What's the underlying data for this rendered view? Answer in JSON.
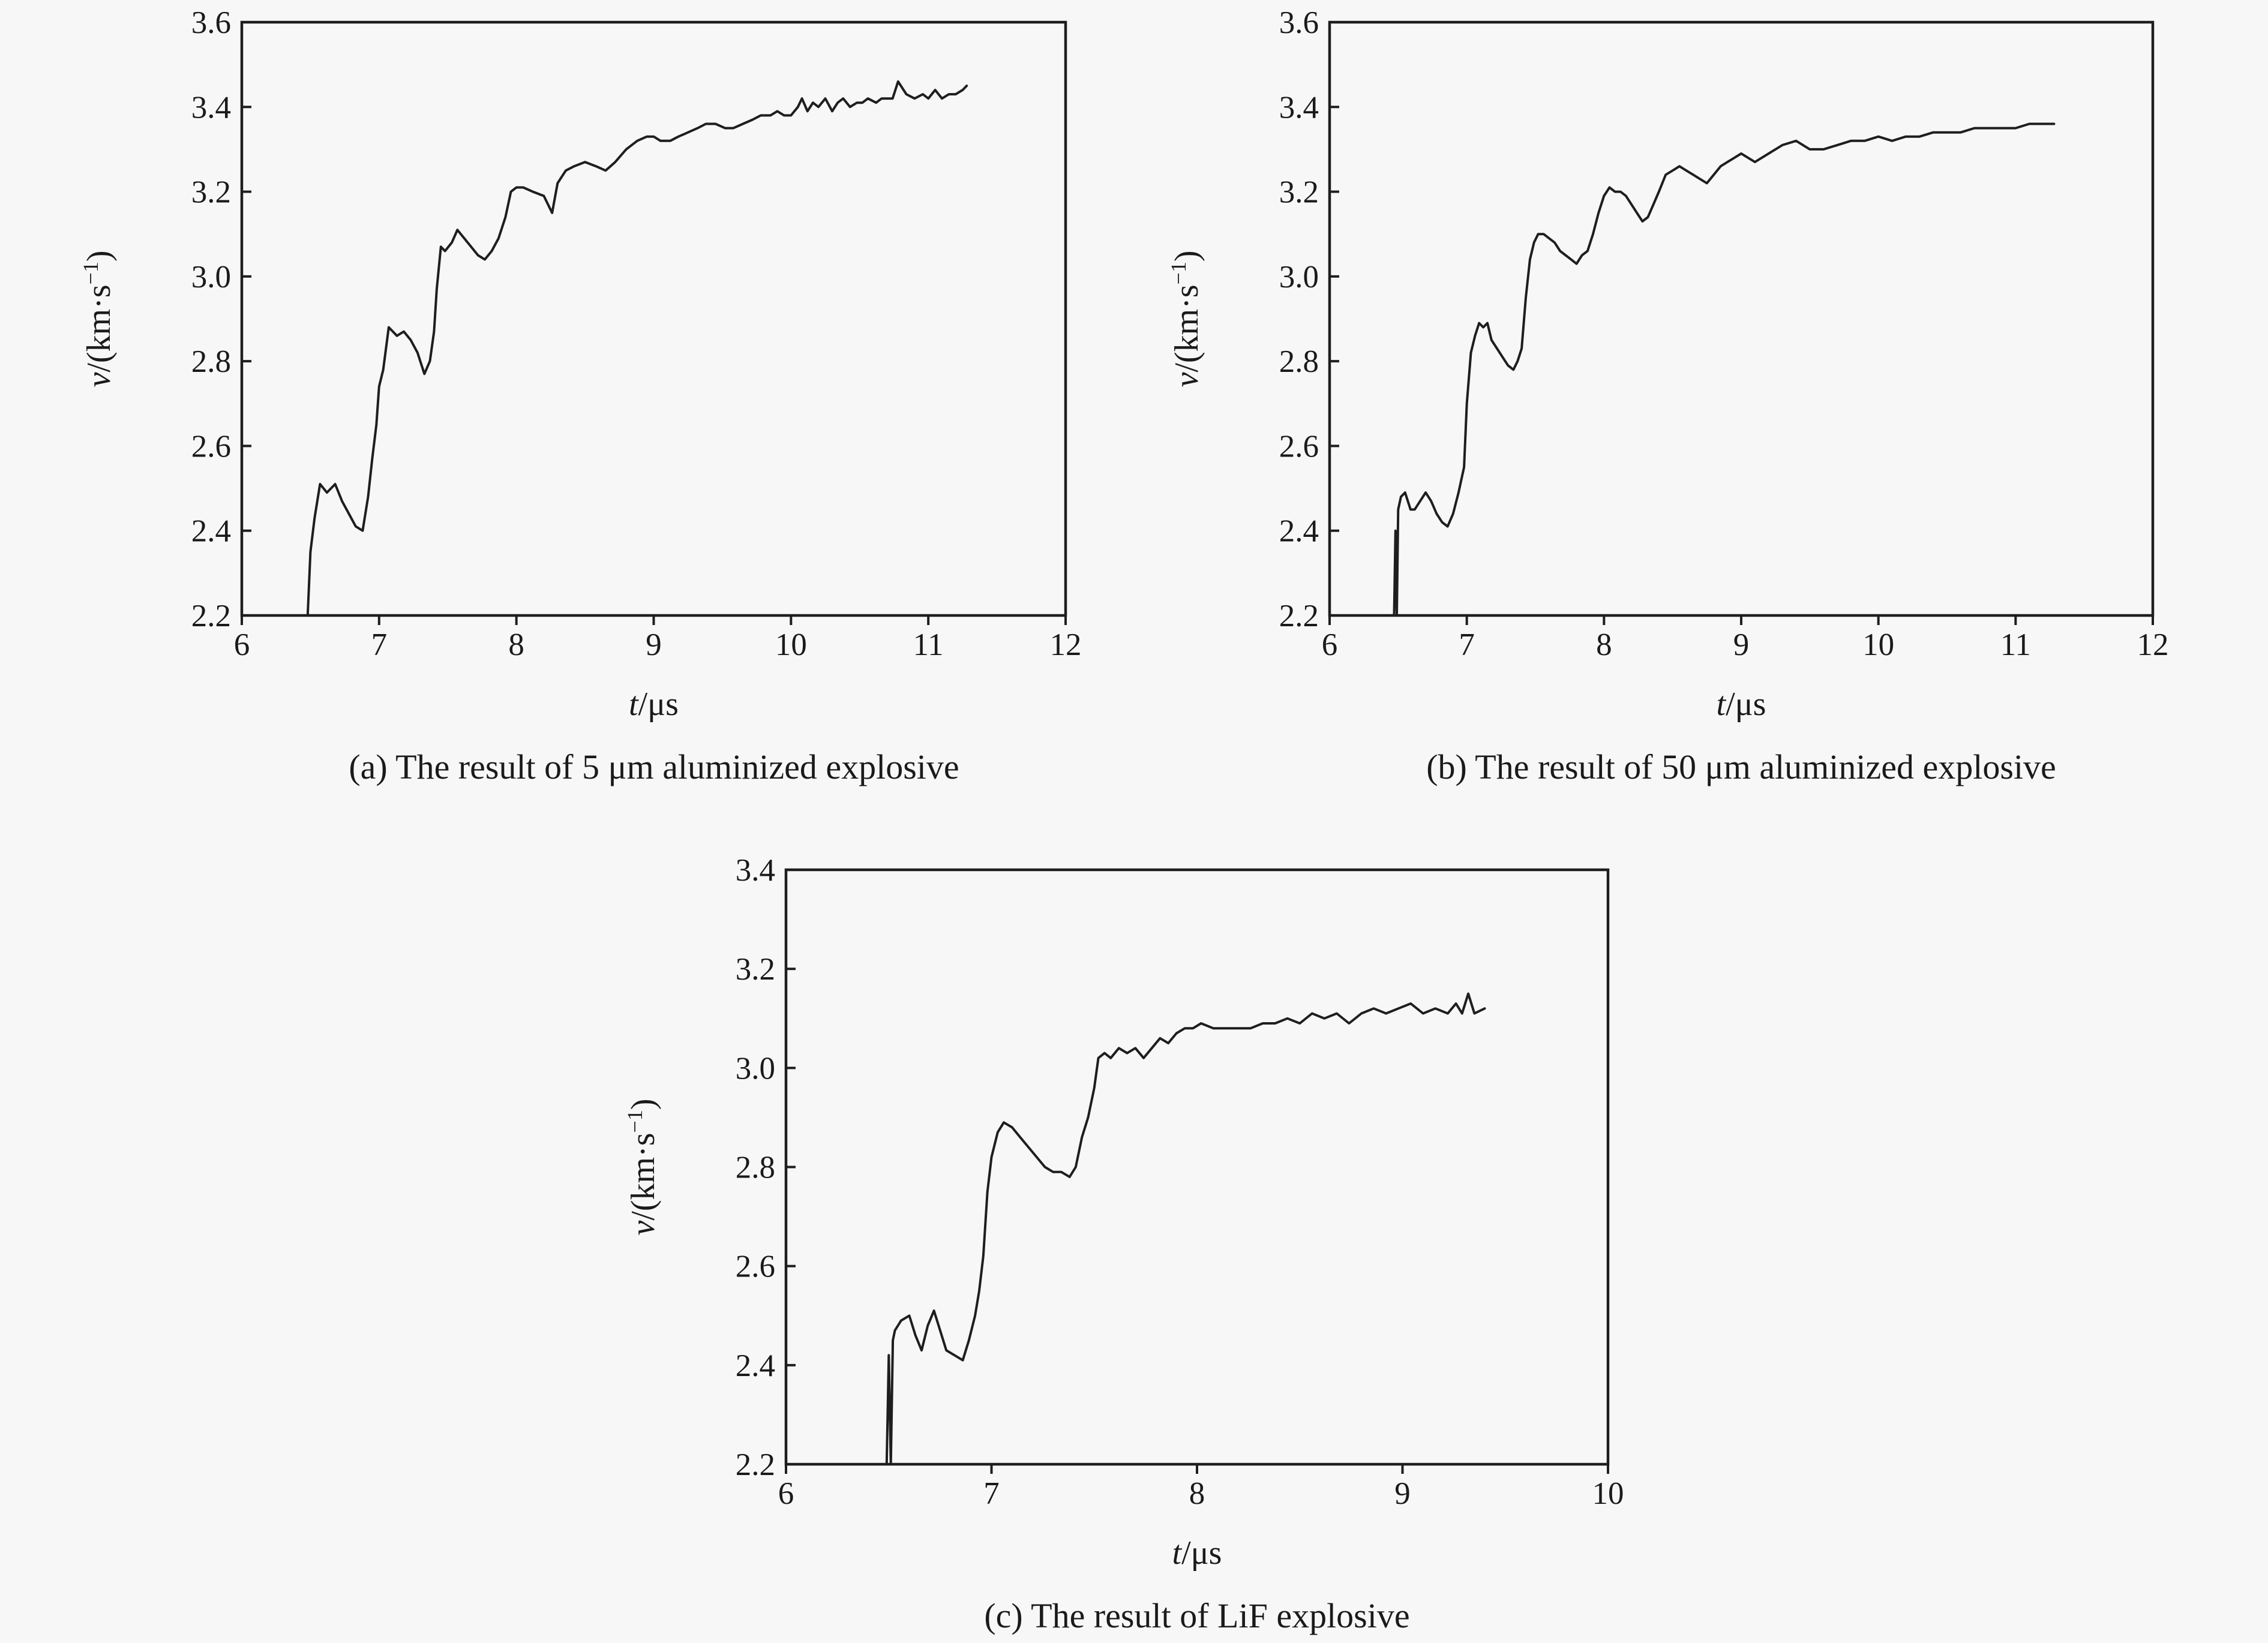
{
  "chart_data": [
    {
      "type": "line",
      "caption": "(a) The result of 5 μm aluminized explosive",
      "xlabel_var": "t",
      "xlabel_unit": "/μs",
      "ylabel_var": "v",
      "ylabel_unit": "/(km·s",
      "ylabel_exp": "−1",
      "ylabel_close": ")",
      "xlim": [
        6,
        12
      ],
      "ylim": [
        2.2,
        3.6
      ],
      "xticks": [
        "6",
        "7",
        "8",
        "9",
        "10",
        "11",
        "12"
      ],
      "yticks": [
        "2.2",
        "2.4",
        "2.6",
        "2.8",
        "3.0",
        "3.2",
        "3.4",
        "3.6"
      ],
      "series": [
        {
          "x": [
            6.48,
            6.5,
            6.53,
            6.57,
            6.62,
            6.68,
            6.73,
            6.78,
            6.83,
            6.88,
            6.92,
            6.95,
            6.98,
            7.0,
            7.03,
            7.07,
            7.13,
            7.18,
            7.23,
            7.28,
            7.33,
            7.37,
            7.4,
            7.42,
            7.45,
            7.48,
            7.53,
            7.57,
            7.62,
            7.67,
            7.72,
            7.77,
            7.82,
            7.87,
            7.92,
            7.96,
            8.0,
            8.05,
            8.12,
            8.2,
            8.26,
            8.3,
            8.36,
            8.42,
            8.5,
            8.58,
            8.65,
            8.72,
            8.8,
            8.88,
            8.95,
            9.0,
            9.05,
            9.12,
            9.18,
            9.25,
            9.32,
            9.38,
            9.45,
            9.52,
            9.58,
            9.65,
            9.72,
            9.78,
            9.85,
            9.9,
            9.95,
            10.0,
            10.05,
            10.08,
            10.12,
            10.16,
            10.2,
            10.25,
            10.3,
            10.34,
            10.38,
            10.43,
            10.48,
            10.52,
            10.56,
            10.62,
            10.66,
            10.7,
            10.74,
            10.78,
            10.84,
            10.9,
            10.96,
            11.0,
            11.05,
            11.1,
            11.15,
            11.2,
            11.25,
            11.28
          ],
          "y": [
            2.2,
            2.35,
            2.43,
            2.51,
            2.49,
            2.51,
            2.47,
            2.44,
            2.41,
            2.4,
            2.48,
            2.57,
            2.65,
            2.74,
            2.78,
            2.88,
            2.86,
            2.87,
            2.85,
            2.82,
            2.77,
            2.8,
            2.87,
            2.97,
            3.07,
            3.06,
            3.08,
            3.11,
            3.09,
            3.07,
            3.05,
            3.04,
            3.06,
            3.09,
            3.14,
            3.2,
            3.21,
            3.21,
            3.2,
            3.19,
            3.15,
            3.22,
            3.25,
            3.26,
            3.27,
            3.26,
            3.25,
            3.27,
            3.3,
            3.32,
            3.33,
            3.33,
            3.32,
            3.32,
            3.33,
            3.34,
            3.35,
            3.36,
            3.36,
            3.35,
            3.35,
            3.36,
            3.37,
            3.38,
            3.38,
            3.39,
            3.38,
            3.38,
            3.4,
            3.42,
            3.39,
            3.41,
            3.4,
            3.42,
            3.39,
            3.41,
            3.42,
            3.4,
            3.41,
            3.41,
            3.42,
            3.41,
            3.42,
            3.42,
            3.42,
            3.46,
            3.43,
            3.42,
            3.43,
            3.42,
            3.44,
            3.42,
            3.43,
            3.43,
            3.44,
            3.45
          ]
        }
      ]
    },
    {
      "type": "line",
      "caption": "(b) The result of 50 μm aluminized explosive",
      "xlabel_var": "t",
      "xlabel_unit": "/μs",
      "ylabel_var": "v",
      "ylabel_unit": "/(km·s",
      "ylabel_exp": "−1",
      "ylabel_close": ")",
      "xlim": [
        6,
        12
      ],
      "ylim": [
        2.2,
        3.6
      ],
      "xticks": [
        "6",
        "7",
        "8",
        "9",
        "10",
        "11",
        "12"
      ],
      "yticks": [
        "2.2",
        "2.4",
        "2.6",
        "2.8",
        "3.0",
        "3.2",
        "3.4",
        "3.6"
      ],
      "series": [
        {
          "x": [
            6.47,
            6.48,
            6.49,
            6.5,
            6.52,
            6.55,
            6.59,
            6.62,
            6.66,
            6.7,
            6.74,
            6.78,
            6.82,
            6.86,
            6.9,
            6.94,
            6.98,
            7.0,
            7.03,
            7.06,
            7.09,
            7.12,
            7.15,
            7.18,
            7.22,
            7.26,
            7.3,
            7.34,
            7.37,
            7.4,
            7.43,
            7.46,
            7.49,
            7.52,
            7.56,
            7.6,
            7.64,
            7.68,
            7.72,
            7.76,
            7.8,
            7.84,
            7.88,
            7.92,
            7.96,
            8.0,
            8.04,
            8.08,
            8.12,
            8.16,
            8.2,
            8.24,
            8.28,
            8.32,
            8.36,
            8.4,
            8.45,
            8.5,
            8.55,
            8.6,
            8.65,
            8.7,
            8.75,
            8.8,
            8.85,
            8.9,
            8.95,
            9.0,
            9.1,
            9.2,
            9.3,
            9.4,
            9.5,
            9.6,
            9.7,
            9.8,
            9.9,
            10.0,
            10.1,
            10.2,
            10.3,
            10.4,
            10.5,
            10.6,
            10.7,
            10.8,
            10.9,
            11.0,
            11.1,
            11.2,
            11.28
          ],
          "y": [
            2.2,
            2.4,
            2.2,
            2.45,
            2.48,
            2.49,
            2.45,
            2.45,
            2.47,
            2.49,
            2.47,
            2.44,
            2.42,
            2.41,
            2.44,
            2.49,
            2.55,
            2.7,
            2.82,
            2.86,
            2.89,
            2.88,
            2.89,
            2.85,
            2.83,
            2.81,
            2.79,
            2.78,
            2.8,
            2.83,
            2.95,
            3.04,
            3.08,
            3.1,
            3.1,
            3.09,
            3.08,
            3.06,
            3.05,
            3.04,
            3.03,
            3.05,
            3.06,
            3.1,
            3.15,
            3.19,
            3.21,
            3.2,
            3.2,
            3.19,
            3.17,
            3.15,
            3.13,
            3.14,
            3.17,
            3.2,
            3.24,
            3.25,
            3.26,
            3.25,
            3.24,
            3.23,
            3.22,
            3.24,
            3.26,
            3.27,
            3.28,
            3.29,
            3.27,
            3.29,
            3.31,
            3.32,
            3.3,
            3.3,
            3.31,
            3.32,
            3.32,
            3.33,
            3.32,
            3.33,
            3.33,
            3.34,
            3.34,
            3.34,
            3.35,
            3.35,
            3.35,
            3.35,
            3.36,
            3.36,
            3.36
          ]
        }
      ]
    },
    {
      "type": "line",
      "caption": "(c) The result of LiF explosive",
      "xlabel_var": "t",
      "xlabel_unit": "/μs",
      "ylabel_var": "v",
      "ylabel_unit": "/(km·s",
      "ylabel_exp": "−1",
      "ylabel_close": ")",
      "xlim": [
        6,
        10
      ],
      "ylim": [
        2.2,
        3.4
      ],
      "xticks": [
        "6",
        "7",
        "8",
        "9",
        "10"
      ],
      "yticks": [
        "2.2",
        "2.4",
        "2.6",
        "2.8",
        "3.0",
        "3.2",
        "3.4"
      ],
      "series": [
        {
          "x": [
            6.49,
            6.5,
            6.51,
            6.52,
            6.53,
            6.56,
            6.6,
            6.63,
            6.66,
            6.69,
            6.72,
            6.75,
            6.78,
            6.82,
            6.86,
            6.89,
            6.92,
            6.94,
            6.96,
            6.98,
            7.0,
            7.03,
            7.06,
            7.1,
            7.14,
            7.18,
            7.22,
            7.26,
            7.3,
            7.34,
            7.38,
            7.41,
            7.44,
            7.47,
            7.5,
            7.52,
            7.55,
            7.58,
            7.62,
            7.66,
            7.7,
            7.74,
            7.78,
            7.82,
            7.86,
            7.9,
            7.94,
            7.98,
            8.02,
            8.08,
            8.14,
            8.2,
            8.26,
            8.32,
            8.38,
            8.44,
            8.5,
            8.56,
            8.62,
            8.68,
            8.74,
            8.8,
            8.86,
            8.92,
            8.98,
            9.04,
            9.1,
            9.16,
            9.22,
            9.26,
            9.29,
            9.32,
            9.35,
            9.4
          ],
          "y": [
            2.2,
            2.42,
            2.2,
            2.45,
            2.47,
            2.49,
            2.5,
            2.46,
            2.43,
            2.48,
            2.51,
            2.47,
            2.43,
            2.42,
            2.41,
            2.45,
            2.5,
            2.55,
            2.62,
            2.75,
            2.82,
            2.87,
            2.89,
            2.88,
            2.86,
            2.84,
            2.82,
            2.8,
            2.79,
            2.79,
            2.78,
            2.8,
            2.86,
            2.9,
            2.96,
            3.02,
            3.03,
            3.02,
            3.04,
            3.03,
            3.04,
            3.02,
            3.04,
            3.06,
            3.05,
            3.07,
            3.08,
            3.08,
            3.09,
            3.08,
            3.08,
            3.08,
            3.08,
            3.09,
            3.09,
            3.1,
            3.09,
            3.11,
            3.1,
            3.11,
            3.09,
            3.11,
            3.12,
            3.11,
            3.12,
            3.13,
            3.11,
            3.12,
            3.11,
            3.13,
            3.11,
            3.15,
            3.11,
            3.12
          ]
        }
      ]
    }
  ]
}
